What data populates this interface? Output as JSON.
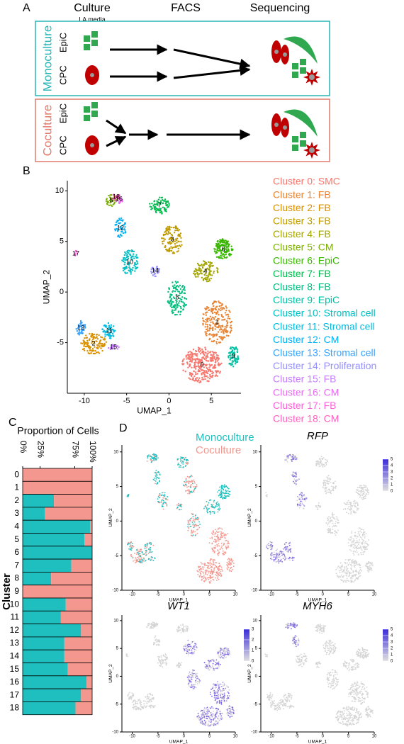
{
  "panel_a": {
    "label": "A",
    "headers": [
      "Culture",
      "FACS",
      "Sequencing"
    ],
    "subheader": "LA media",
    "groups": [
      {
        "name": "Monoculture",
        "color": "#29b5b5",
        "cells": [
          "EpiC",
          "CPC"
        ]
      },
      {
        "name": "Coculture",
        "color": "#e07b6c",
        "cells": [
          "EpiC",
          "CPC"
        ]
      }
    ]
  },
  "panel_b": {
    "label": "B",
    "x_label": "UMAP_1",
    "y_label": "UMAP_2",
    "xlim": [
      -12,
      8.5
    ],
    "ylim": [
      -10,
      11
    ],
    "xticks": [
      -10,
      -5,
      0,
      5
    ],
    "yticks": [
      -5,
      0,
      5,
      10
    ],
    "clusters": [
      {
        "id": "0",
        "name": "Cluster 0: SMC",
        "color": "#F8766D"
      },
      {
        "id": "1",
        "name": "Cluster 1: FB",
        "color": "#EA8331"
      },
      {
        "id": "2",
        "name": "Cluster 2: FB",
        "color": "#D89000"
      },
      {
        "id": "3",
        "name": "Cluster 3: FB",
        "color": "#C09B00"
      },
      {
        "id": "4",
        "name": "Cluster 4: FB",
        "color": "#A3A500"
      },
      {
        "id": "5",
        "name": "Cluster 5: CM",
        "color": "#7CAE00"
      },
      {
        "id": "6",
        "name": "Cluster 6: EpiC",
        "color": "#39B600"
      },
      {
        "id": "7",
        "name": "Cluster 7: FB",
        "color": "#00BB4E"
      },
      {
        "id": "8",
        "name": "Cluster 8: FB",
        "color": "#00BF7D"
      },
      {
        "id": "9",
        "name": "Cluster 9: EpiC",
        "color": "#00C1A3"
      },
      {
        "id": "10",
        "name": "Cluster 10: Stromal cell",
        "color": "#00BFC4"
      },
      {
        "id": "11",
        "name": "Cluster 11: Stromal cell",
        "color": "#00BAE0"
      },
      {
        "id": "12",
        "name": "Cluster 12: CM",
        "color": "#00B0F6"
      },
      {
        "id": "13",
        "name": "Cluster 13: Stromal cell",
        "color": "#35A2FF"
      },
      {
        "id": "14",
        "name": "Cluster 14: Proliferation",
        "color": "#9590FF"
      },
      {
        "id": "15",
        "name": "Cluster 15: FB",
        "color": "#C77CFF"
      },
      {
        "id": "16",
        "name": "Cluster 16: CM",
        "color": "#E76BF3"
      },
      {
        "id": "17",
        "name": "Cluster 17: FB",
        "color": "#FA62DB"
      },
      {
        "id": "18",
        "name": "Cluster 18: CM",
        "color": "#FF62BC"
      }
    ]
  },
  "chart_data": {
    "type": "bar",
    "orientation": "horizontal",
    "stacked": true,
    "panel_label": "C",
    "title": "Proportion of Cells",
    "y_label": "Cluster",
    "categories": [
      "0",
      "1",
      "2",
      "3",
      "4",
      "5",
      "6",
      "7",
      "8",
      "9",
      "10",
      "11",
      "12",
      "13",
      "14",
      "15",
      "16",
      "17",
      "18"
    ],
    "series": [
      {
        "name": "Monoculture",
        "color": "#1fbfbf",
        "values": [
          0,
          0,
          45,
          32,
          97,
          89,
          100,
          70,
          41,
          0,
          62,
          55,
          84,
          60,
          60,
          65,
          92,
          84,
          76
        ]
      },
      {
        "name": "Coculture",
        "color": "#f4978e",
        "values": [
          100,
          100,
          55,
          68,
          3,
          11,
          0,
          30,
          59,
          100,
          38,
          45,
          16,
          40,
          40,
          35,
          8,
          16,
          24
        ]
      }
    ],
    "xlim": [
      0,
      100
    ],
    "xticks": [
      {
        "value": 0,
        "label": "0%"
      },
      {
        "value": 25,
        "label": "25%"
      },
      {
        "value": 75,
        "label": "75%"
      },
      {
        "value": 100,
        "label": "100%"
      }
    ]
  },
  "panel_d": {
    "label": "D",
    "x_label": "UMAP_1",
    "y_label": "UMAP_2",
    "xlim": [
      -12,
      10
    ],
    "ylim": [
      -10,
      11
    ],
    "xticks": [
      -10,
      -5,
      0,
      5,
      10
    ],
    "yticks": [
      -10,
      -5,
      0,
      5,
      10
    ],
    "feature_plots": [
      {
        "gene": "RFP",
        "scale_ticks": [
          0,
          1,
          2,
          3,
          4,
          5
        ]
      },
      {
        "gene": "WT1",
        "scale_ticks": [
          0,
          1,
          2,
          3
        ]
      },
      {
        "gene": "MYH6",
        "scale_ticks": [
          0,
          1,
          2,
          3,
          4,
          5
        ]
      }
    ]
  }
}
